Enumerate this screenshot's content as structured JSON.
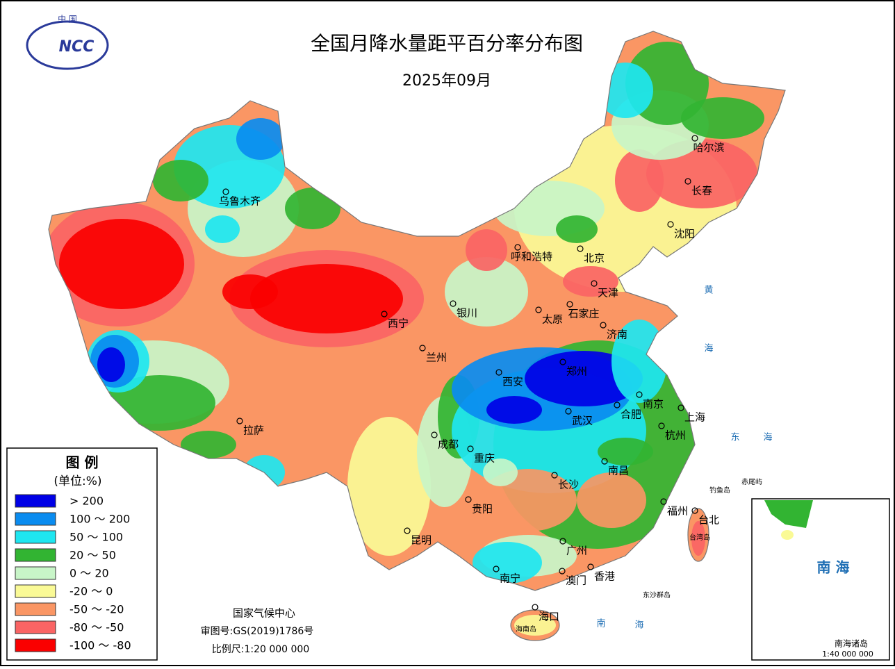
{
  "logo": {
    "top": "中 国",
    "mark": "NCC"
  },
  "title": "全国月降水量距平百分率分布图",
  "subtitle": "2025年09月",
  "legend": {
    "title": "图 例",
    "unit": "(单位:%)",
    "items": [
      {
        "label": "> 200",
        "color": "#0000e6"
      },
      {
        "label": "100 ～ 200",
        "color": "#0a8cf0"
      },
      {
        "label": "50 ～ 100",
        "color": "#1ee6f0"
      },
      {
        "label": "20 ～ 50",
        "color": "#32b432"
      },
      {
        "label": "0 ～ 20",
        "color": "#c8f5c8"
      },
      {
        "label": "-20 ～ 0",
        "color": "#fafa96"
      },
      {
        "label": "-50 ～ -20",
        "color": "#fa9664"
      },
      {
        "label": "-80 ～ -50",
        "color": "#fa6464"
      },
      {
        "label": "-100 ～ -80",
        "color": "#fa0000"
      }
    ]
  },
  "credits": [
    "国家气候中心",
    "审图号:GS(2019)1786号",
    "比例尺:1:20 000 000"
  ],
  "cities": [
    "乌鲁木齐",
    "哈尔滨",
    "长春",
    "沈阳",
    "呼和浩特",
    "北京",
    "天津",
    "石家庄",
    "太原",
    "银川",
    "西宁",
    "兰州",
    "济南",
    "郑州",
    "西安",
    "南京",
    "合肥",
    "上海",
    "武汉",
    "杭州",
    "成都",
    "重庆",
    "拉萨",
    "长沙",
    "南昌",
    "贵阳",
    "福州",
    "台北",
    "昆明",
    "广州",
    "澳门",
    "香港",
    "南宁",
    "海口"
  ],
  "places": [
    "黄",
    "海",
    "东",
    "海",
    "南",
    "海",
    "钓鱼岛",
    "赤尾屿",
    "东沙群岛",
    "海南岛",
    "台湾岛"
  ],
  "inset": {
    "sea": "南 海",
    "title": "南海诸岛",
    "scale": "1:40 000 000"
  }
}
